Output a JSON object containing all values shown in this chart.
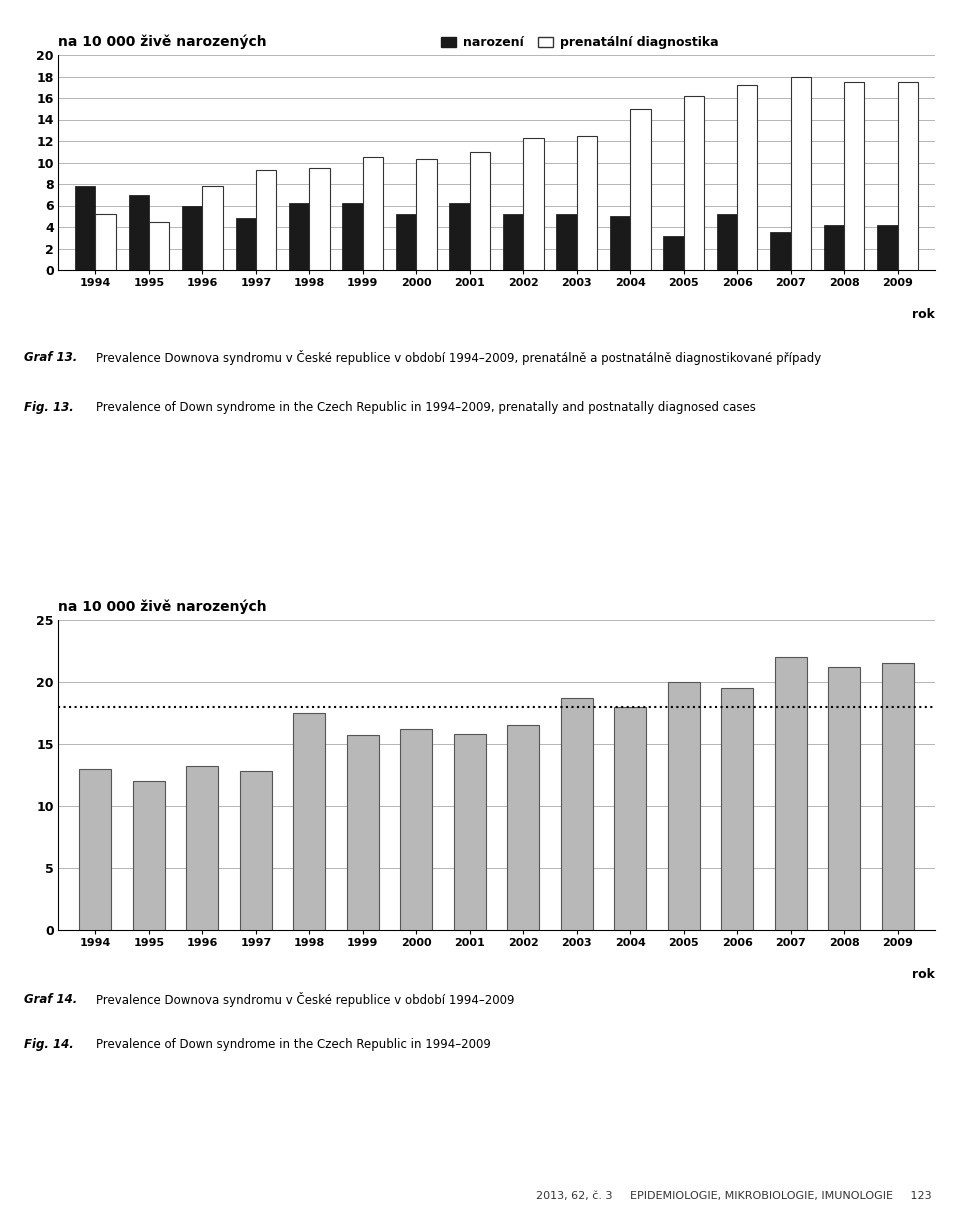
{
  "years": [
    1994,
    1995,
    1996,
    1997,
    1998,
    1999,
    2000,
    2001,
    2002,
    2003,
    2004,
    2005,
    2006,
    2007,
    2008,
    2009
  ],
  "chart1": {
    "narozeni": [
      7.8,
      7.0,
      6.0,
      4.8,
      6.2,
      6.2,
      5.2,
      6.2,
      5.2,
      5.2,
      5.0,
      3.2,
      5.2,
      3.5,
      4.2,
      4.2
    ],
    "prenatalni": [
      5.2,
      4.5,
      7.8,
      9.3,
      9.5,
      10.5,
      10.3,
      11.0,
      12.3,
      12.5,
      15.0,
      16.2,
      17.2,
      18.0,
      17.5,
      17.5
    ],
    "ylabel": "na 10 000 živě narozených",
    "ylim": [
      0,
      20
    ],
    "yticks": [
      0,
      2,
      4,
      6,
      8,
      10,
      12,
      14,
      16,
      18,
      20
    ],
    "legend_narozeni": "narození",
    "legend_prenatalni": "prenatální diagnostika",
    "xlabel": "rok",
    "bar_black": "#1a1a1a",
    "bar_white": "#ffffff",
    "bar_white_edge": "#333333"
  },
  "chart2": {
    "values": [
      13.0,
      12.0,
      13.2,
      12.8,
      17.5,
      15.7,
      16.2,
      15.8,
      16.5,
      18.7,
      18.0,
      20.0,
      19.5,
      22.0,
      21.2,
      21.5
    ],
    "ylabel": "na 10 000 živě narozených",
    "ylim": [
      0,
      25
    ],
    "yticks": [
      0,
      5,
      10,
      15,
      20,
      25
    ],
    "dotted_line": 18.0,
    "xlabel": "rok",
    "bar_color": "#b8b8b8",
    "bar_edge": "#555555"
  },
  "caption1_bold": "Graf 13.",
  "caption1_text": "Prevalence Downova syndromu v České republice v období 1994–2009, prenatálně a postnatálně diagnostikované případy",
  "caption1_fig_bold": "Fig. 13.",
  "caption1_fig_text": "Prevalence of Down syndrome in the Czech Republic in 1994–2009, prenatally and postnatally diagnosed cases",
  "caption2_bold": "Graf 14.",
  "caption2_text": "Prevalence Downova syndromu v České republice v období 1994–2009",
  "caption2_fig_bold": "Fig. 14.",
  "caption2_fig_text": "Prevalence of Down syndrome in the Czech Republic in 1994–2009",
  "bg_color": "#ffffff",
  "caption_bg": "#e0e0e0",
  "footer_text": "2013, 62, č. 3     EPIDEMIOLOGIE, MIKROBIOLOGIE, IMUNOLOGIE     123"
}
